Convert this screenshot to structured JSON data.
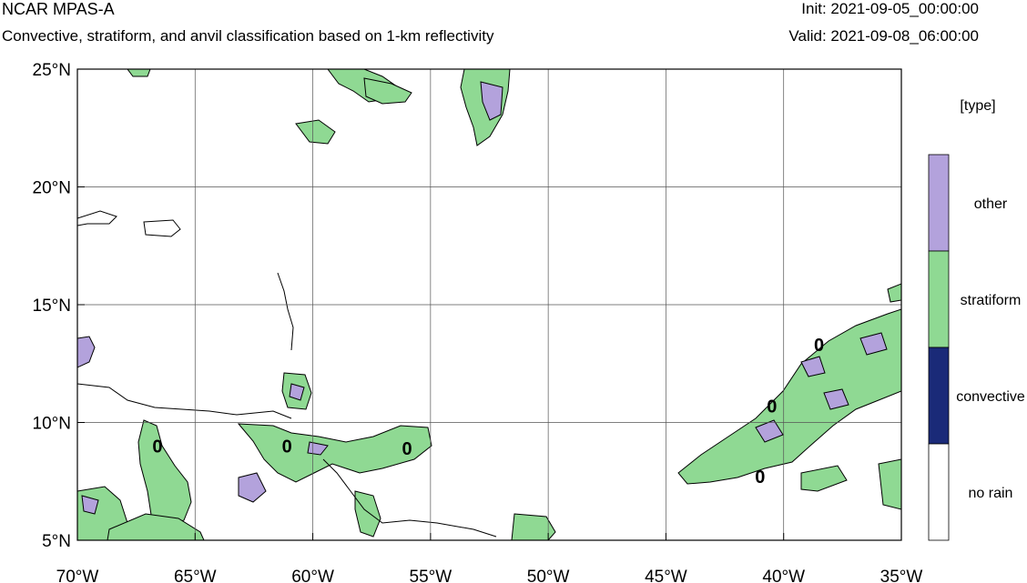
{
  "header": {
    "title": "NCAR MPAS-A",
    "subtitle": "Convective, stratiform, and anvil classification based on 1-km reflectivity",
    "init": "Init: 2021-09-05_00:00:00",
    "valid": "Valid: 2021-09-08_06:00:00"
  },
  "map": {
    "lon_range": [
      -70,
      -35
    ],
    "lat_range": [
      5,
      25
    ],
    "lon_ticks": [
      {
        "value": -70,
        "label": "70°W"
      },
      {
        "value": -65,
        "label": "65°W"
      },
      {
        "value": -60,
        "label": "60°W"
      },
      {
        "value": -55,
        "label": "55°W"
      },
      {
        "value": -50,
        "label": "50°W"
      },
      {
        "value": -45,
        "label": "45°W"
      },
      {
        "value": -40,
        "label": "40°W"
      },
      {
        "value": -35,
        "label": "35°W"
      }
    ],
    "lat_ticks": [
      {
        "value": 5,
        "label": "5°N"
      },
      {
        "value": 10,
        "label": "10°N"
      },
      {
        "value": 15,
        "label": "15°N"
      },
      {
        "value": 20,
        "label": "20°N"
      },
      {
        "value": 25,
        "label": "25°N"
      }
    ],
    "grid": true,
    "contour_labels": [
      {
        "text": "0",
        "lon": -66.6,
        "lat": 9.0
      },
      {
        "text": "0",
        "lon": -61.1,
        "lat": 9.0
      },
      {
        "text": "0",
        "lon": -56.0,
        "lat": 8.9
      },
      {
        "text": "0",
        "lon": -40.5,
        "lat": 10.7
      },
      {
        "text": "0",
        "lon": -41.0,
        "lat": 7.7
      },
      {
        "text": "0",
        "lon": -38.5,
        "lat": 13.3
      }
    ]
  },
  "legend": {
    "title": "[type]",
    "placement": "right",
    "items": [
      {
        "label": "other",
        "color": "#b3a2dc"
      },
      {
        "label": "stratiform",
        "color": "#8fd993"
      },
      {
        "label": "convective",
        "color": "#1a2a78"
      },
      {
        "label": "no rain",
        "color": "#ffffff"
      }
    ]
  }
}
